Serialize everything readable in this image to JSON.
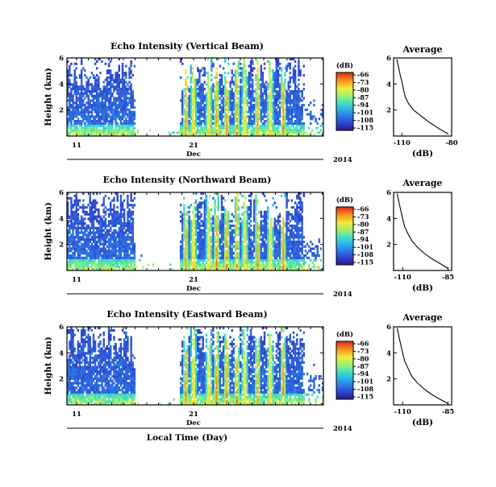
{
  "chart_data": [
    {
      "type": "heatmap",
      "title": "Echo Intensity (Vertical Beam)",
      "ylabel": "Height (km)",
      "y_ticks": [
        "6",
        "4",
        "2"
      ],
      "ylim": [
        0,
        6
      ],
      "x_ticks": [
        "11",
        "21"
      ],
      "month_label": "Dec",
      "year_label": "2014",
      "xlabel": "",
      "colorbar": {
        "label": "(dB)",
        "ticks": [
          "-66",
          "-73",
          "-80",
          "-87",
          "-94",
          "-101",
          "-108",
          "-115"
        ]
      },
      "profile": {
        "title": "Average",
        "xlabel": "(dB)",
        "x_ticks": [
          "-110",
          "-80"
        ],
        "y_ticks": [
          "6",
          "4",
          "2"
        ],
        "xlim": [
          -115,
          -80
        ],
        "ylim": [
          0,
          6
        ],
        "points": [
          [
            -113,
            5.9
          ],
          [
            -112,
            5.3
          ],
          [
            -111,
            4.7
          ],
          [
            -110,
            4.2
          ],
          [
            -109,
            3.6
          ],
          [
            -108,
            3.0
          ],
          [
            -106,
            2.5
          ],
          [
            -103,
            2.0
          ],
          [
            -99,
            1.6
          ],
          [
            -94,
            1.1
          ],
          [
            -88,
            0.6
          ],
          [
            -82,
            0.15
          ]
        ]
      }
    },
    {
      "type": "heatmap",
      "title": "Echo Intensity (Northward Beam)",
      "ylabel": "Height (km)",
      "y_ticks": [
        "6",
        "4",
        "2"
      ],
      "ylim": [
        0,
        6
      ],
      "x_ticks": [
        "11",
        "21"
      ],
      "month_label": "Dec",
      "year_label": "2014",
      "xlabel": "",
      "colorbar": {
        "label": "(dB)",
        "ticks": [
          "-66",
          "-73",
          "-80",
          "-87",
          "-94",
          "-101",
          "-108",
          "-115"
        ]
      },
      "profile": {
        "title": "Average",
        "xlabel": "(dB)",
        "x_ticks": [
          "-110",
          "-85"
        ],
        "y_ticks": [
          "6",
          "4",
          "2"
        ],
        "xlim": [
          -115,
          -83
        ],
        "ylim": [
          0,
          6
        ],
        "points": [
          [
            -113,
            5.9
          ],
          [
            -112,
            5.2
          ],
          [
            -111,
            4.6
          ],
          [
            -110,
            4.0
          ],
          [
            -109,
            3.4
          ],
          [
            -107,
            2.8
          ],
          [
            -105,
            2.3
          ],
          [
            -102,
            1.8
          ],
          [
            -98,
            1.3
          ],
          [
            -94,
            0.9
          ],
          [
            -89,
            0.5
          ],
          [
            -85,
            0.15
          ]
        ]
      }
    },
    {
      "type": "heatmap",
      "title": "Echo Intensity (Eastward Beam)",
      "ylabel": "Height (km)",
      "y_ticks": [
        "6",
        "4",
        "2"
      ],
      "ylim": [
        0,
        6
      ],
      "x_ticks": [
        "11",
        "21"
      ],
      "month_label": "Dec",
      "year_label": "2014",
      "xlabel": "Local Time (Day)",
      "colorbar": {
        "label": "(dB)",
        "ticks": [
          "-66",
          "-73",
          "-80",
          "-87",
          "-94",
          "-101",
          "-108",
          "-115"
        ]
      },
      "profile": {
        "title": "Average",
        "xlabel": "(dB)",
        "x_ticks": [
          "-110",
          "-85"
        ],
        "y_ticks": [
          "6",
          "4",
          "2"
        ],
        "xlim": [
          -115,
          -83
        ],
        "ylim": [
          0,
          6
        ],
        "points": [
          [
            -113,
            5.9
          ],
          [
            -112,
            5.2
          ],
          [
            -111,
            4.6
          ],
          [
            -110,
            4.0
          ],
          [
            -109,
            3.4
          ],
          [
            -107,
            2.8
          ],
          [
            -105,
            2.2
          ],
          [
            -102,
            1.7
          ],
          [
            -98,
            1.2
          ],
          [
            -94,
            0.8
          ],
          [
            -89,
            0.4
          ],
          [
            -85,
            0.1
          ]
        ]
      }
    }
  ]
}
